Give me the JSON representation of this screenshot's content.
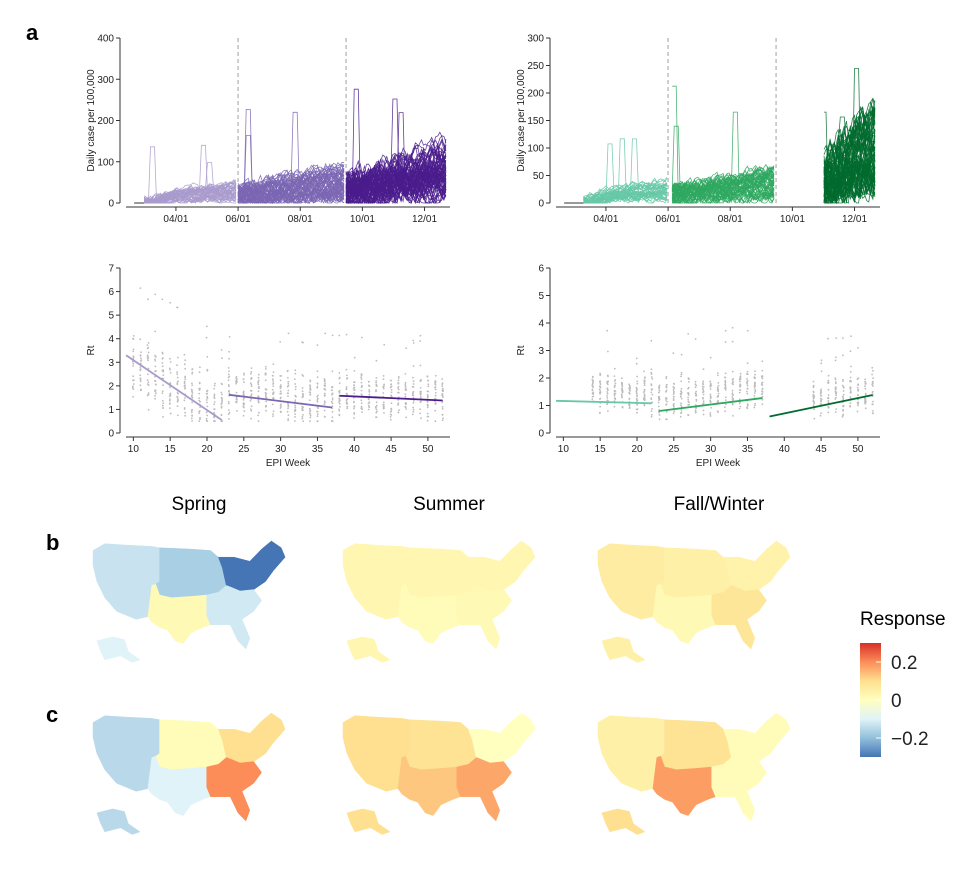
{
  "panel_labels": {
    "a": "a",
    "b": "b",
    "c": "c"
  },
  "season_titles": [
    "Spring",
    "Summer",
    "Fall/Winter"
  ],
  "legend": {
    "title": "Response",
    "ticks": [
      "0.2",
      "0",
      "−0.2"
    ],
    "values": [
      0.2,
      0,
      -0.2
    ],
    "range": [
      -0.3,
      0.3
    ]
  },
  "colors": {
    "purple": [
      "#a99bcc",
      "#7a66b3",
      "#4a1c8c"
    ],
    "green": [
      "#66c8a6",
      "#2fa860",
      "#006b2e"
    ],
    "grey_points": "#bdbdbd",
    "season_divider": "#b5b5b5",
    "colorbar": [
      "#4575b4",
      "#91bfdb",
      "#e0f3f8",
      "#ffffbf",
      "#fee090",
      "#fc8d59",
      "#d73027"
    ]
  },
  "chart_data": [
    {
      "id": "cases-left",
      "type": "line",
      "color_scheme": "purple",
      "ylabel": "Daily case per 100,000",
      "xlabel": "",
      "ylim": [
        0,
        400
      ],
      "yticks": [
        0,
        100,
        200,
        300,
        400
      ],
      "xlim": [
        "2020-02-12",
        "2020-12-26"
      ],
      "xticks": [
        "04/01",
        "06/01",
        "08/01",
        "10/01",
        "12/01"
      ],
      "xtick_dates": [
        "2020-04-01",
        "2020-06-01",
        "2020-08-01",
        "2020-10-01",
        "2020-12-01"
      ],
      "season_breaks": [
        "2020-06-01",
        "2020-09-15"
      ],
      "seasons": [
        {
          "name": "Spring",
          "start": "2020-03-01",
          "end": "2020-05-31",
          "typical": 25,
          "peak": 140,
          "n": 45
        },
        {
          "name": "Summer",
          "start": "2020-06-01",
          "end": "2020-09-14",
          "typical": 45,
          "peak": 230,
          "n": 60
        },
        {
          "name": "Fall/Winter",
          "start": "2020-09-15",
          "end": "2020-12-22",
          "typical": 70,
          "peak": 320,
          "n": 75
        }
      ]
    },
    {
      "id": "cases-right",
      "type": "line",
      "color_scheme": "green",
      "ylabel": "Daily case per 100,000",
      "xlabel": "",
      "ylim": [
        0,
        300
      ],
      "yticks": [
        0,
        50,
        100,
        150,
        200,
        250,
        300
      ],
      "xlim": [
        "2020-02-12",
        "2020-12-26"
      ],
      "xticks": [
        "04/01",
        "06/01",
        "08/01",
        "10/01",
        "12/01"
      ],
      "xtick_dates": [
        "2020-04-01",
        "2020-06-01",
        "2020-08-01",
        "2020-10-01",
        "2020-12-01"
      ],
      "season_breaks": [
        "2020-06-01",
        "2020-09-15"
      ],
      "seasons": [
        {
          "name": "Spring",
          "start": "2020-03-10",
          "end": "2020-05-31",
          "typical": 20,
          "peak": 135,
          "n": 40
        },
        {
          "name": "Summer",
          "start": "2020-06-05",
          "end": "2020-09-14",
          "typical": 30,
          "peak": 230,
          "n": 55
        },
        {
          "name": "Fall/Winter",
          "start": "2020-11-01",
          "end": "2020-12-22",
          "typical": 90,
          "peak": 250,
          "n": 75
        }
      ]
    },
    {
      "id": "rt-left",
      "type": "scatter",
      "color_scheme": "purple",
      "ylabel": "Rt",
      "xlabel": "EPI Week",
      "ylim": [
        0,
        7
      ],
      "yticks": [
        0,
        1,
        2,
        3,
        4,
        5,
        6,
        7
      ],
      "xlim": [
        9,
        53
      ],
      "xticks": [
        10,
        15,
        20,
        25,
        30,
        35,
        40,
        45,
        50
      ],
      "trend_lines": [
        {
          "x": [
            9,
            22
          ],
          "y": [
            3.3,
            0.55
          ]
        },
        {
          "x": [
            23,
            37
          ],
          "y": [
            1.62,
            1.08
          ]
        },
        {
          "x": [
            38,
            52
          ],
          "y": [
            1.58,
            1.38
          ]
        }
      ],
      "point_ranges": [
        {
          "x": [
            10,
            22
          ],
          "center_start": 2.7,
          "center_end": 1.1,
          "spread": 1.6
        },
        {
          "x": [
            23,
            37
          ],
          "center_start": 1.7,
          "center_end": 1.4,
          "spread": 1.3
        },
        {
          "x": [
            38,
            52
          ],
          "center_start": 1.6,
          "center_end": 1.5,
          "spread": 1.1
        }
      ]
    },
    {
      "id": "rt-right",
      "type": "scatter",
      "color_scheme": "green",
      "ylabel": "Rt",
      "xlabel": "EPI Week",
      "ylim": [
        0,
        6
      ],
      "yticks": [
        0,
        1,
        2,
        3,
        4,
        5,
        6
      ],
      "xlim": [
        9,
        53
      ],
      "xticks": [
        10,
        15,
        20,
        25,
        30,
        35,
        40,
        45,
        50
      ],
      "trend_lines": [
        {
          "x": [
            9,
            22
          ],
          "y": [
            1.17,
            1.08
          ]
        },
        {
          "x": [
            23,
            37
          ],
          "y": [
            0.8,
            1.27
          ]
        },
        {
          "x": [
            38,
            52
          ],
          "y": [
            0.6,
            1.38
          ]
        }
      ],
      "point_ranges": [
        {
          "x": [
            14,
            22
          ],
          "center_start": 1.5,
          "center_end": 1.4,
          "spread": 1.0
        },
        {
          "x": [
            23,
            37
          ],
          "center_start": 1.2,
          "center_end": 1.7,
          "spread": 1.0
        },
        {
          "x": [
            44,
            52
          ],
          "center_start": 1.2,
          "center_end": 1.5,
          "spread": 0.9
        }
      ]
    }
  ],
  "maps": {
    "rows": [
      {
        "row": "b",
        "maps": [
          {
            "season": "Spring",
            "regions": {
              "west": -0.13,
              "north_central": -0.17,
              "northeast": -0.3,
              "south_central": 0.02,
              "southeast": -0.12,
              "alaska": -0.1
            }
          },
          {
            "season": "Summer",
            "regions": {
              "west": 0.03,
              "north_central": 0.03,
              "northeast": 0.03,
              "south_central": 0.01,
              "southeast": 0.02,
              "alaska": 0.03
            }
          },
          {
            "season": "Fall/Winter",
            "regions": {
              "west": 0.06,
              "north_central": 0.05,
              "northeast": 0.04,
              "south_central": 0.02,
              "southeast": 0.08,
              "alaska": 0.05
            }
          }
        ]
      },
      {
        "row": "c",
        "maps": [
          {
            "season": "Spring",
            "regions": {
              "west": -0.15,
              "north_central": 0.01,
              "northeast": 0.1,
              "south_central": -0.1,
              "southeast": 0.2,
              "alaska": -0.15
            }
          },
          {
            "season": "Summer",
            "regions": {
              "west": 0.1,
              "north_central": 0.09,
              "northeast": 0.0,
              "south_central": 0.13,
              "southeast": 0.17,
              "alaska": 0.1
            }
          },
          {
            "season": "Fall/Winter",
            "regions": {
              "west": 0.05,
              "north_central": 0.09,
              "northeast": 0.01,
              "south_central": 0.18,
              "southeast": 0.01,
              "alaska": 0.1
            }
          }
        ]
      }
    ]
  }
}
